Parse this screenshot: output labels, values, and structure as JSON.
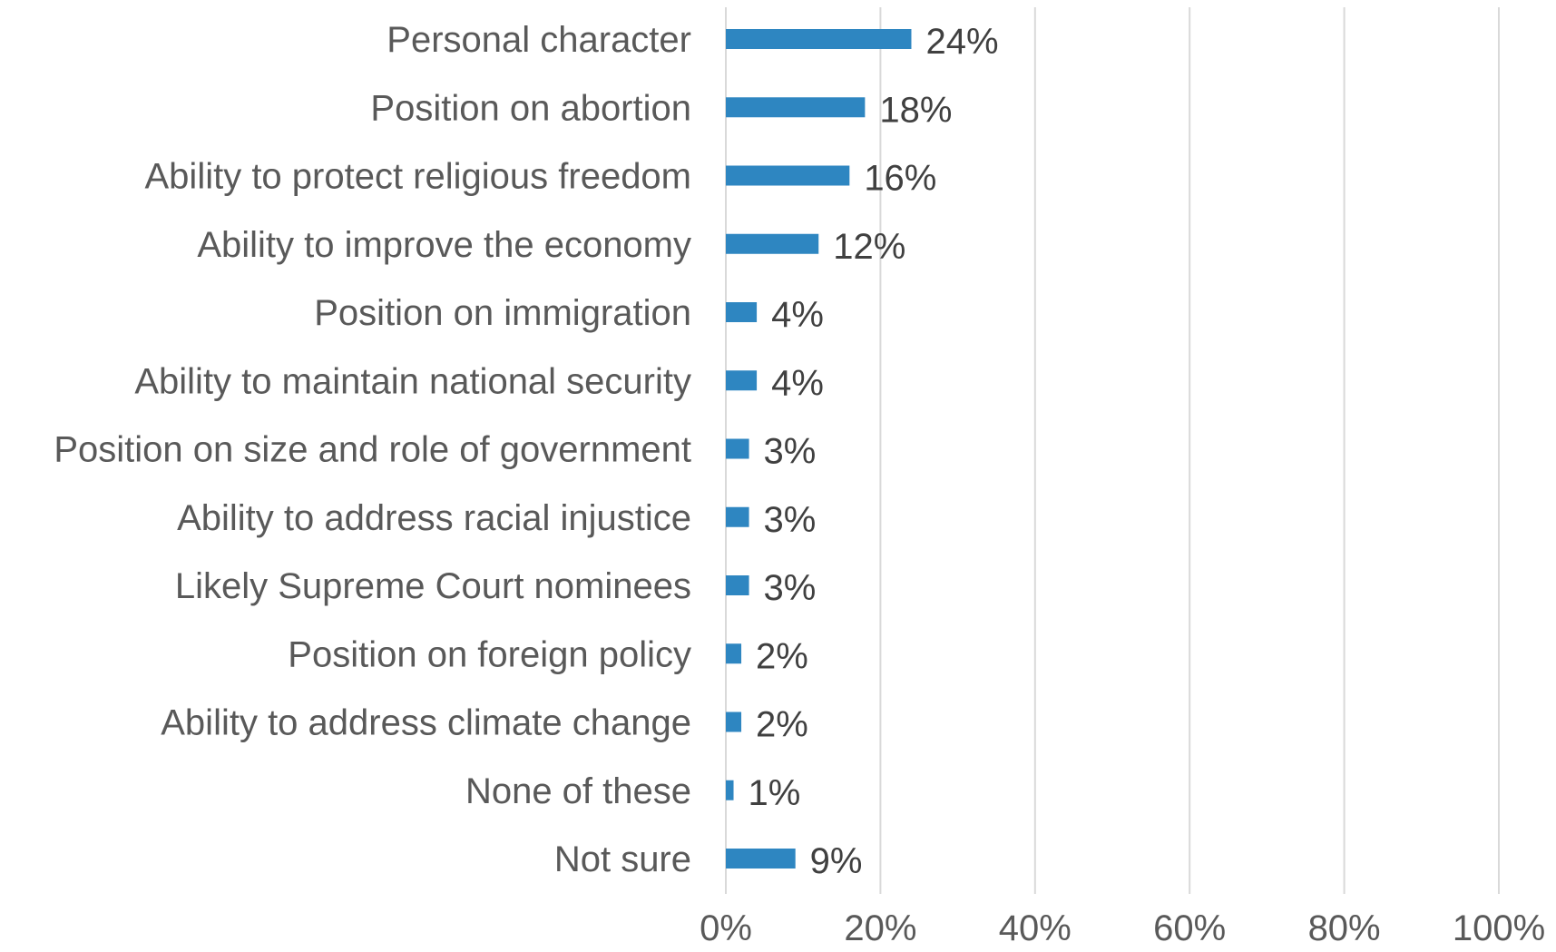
{
  "chart_data": {
    "type": "bar",
    "orientation": "horizontal",
    "title": "",
    "xlabel": "",
    "ylabel": "",
    "categories": [
      "Personal character",
      "Position on abortion",
      "Ability to protect religious freedom",
      "Ability to improve the economy",
      "Position on immigration",
      "Ability to maintain national security",
      "Position on size and role of government",
      "Ability to address racial injustice",
      "Likely Supreme Court nominees",
      "Position on foreign policy",
      "Ability to address climate change",
      "None of these",
      "Not sure"
    ],
    "values": [
      24,
      18,
      16,
      12,
      4,
      4,
      3,
      3,
      3,
      2,
      2,
      1,
      9
    ],
    "value_labels": [
      "24%",
      "18%",
      "16%",
      "12%",
      "4%",
      "4%",
      "3%",
      "3%",
      "3%",
      "2%",
      "2%",
      "1%",
      "9%"
    ],
    "xlim": [
      0,
      100
    ],
    "x_ticks": [
      0,
      20,
      40,
      60,
      80,
      100
    ],
    "x_tick_labels": [
      "0%",
      "20%",
      "40%",
      "60%",
      "80%",
      "100%"
    ],
    "grid": true,
    "legend": "none",
    "colors": {
      "bar": "#2E86C1",
      "grid": "#D9D9D9",
      "category_text": "#595959",
      "value_text": "#404040"
    }
  }
}
